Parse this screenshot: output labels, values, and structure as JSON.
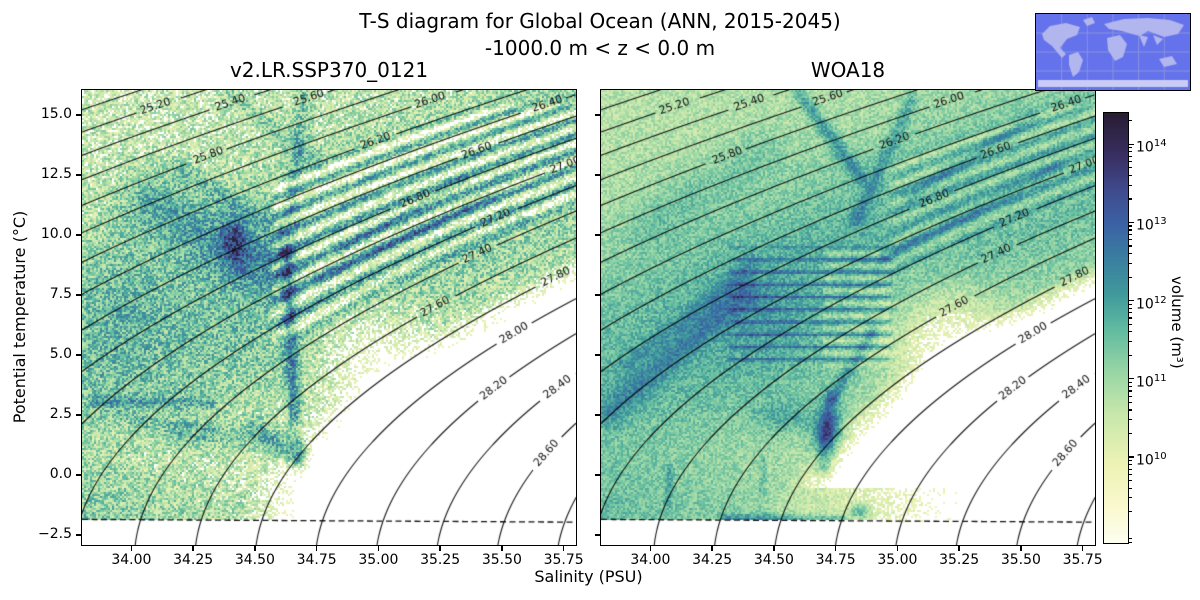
{
  "chart_data": {
    "type": "heatmap",
    "title": "T-S diagram for Global Ocean (ANN, 2015-2045)",
    "subtitle": "-1000.0 m < z < 0.0 m",
    "xlabel": "Salinity (PSU)",
    "ylabel": "Potential temperature (°C)",
    "xlim": [
      33.8,
      35.8
    ],
    "ylim": [
      -2.92,
      16.04
    ],
    "axes": {
      "x_ticks": [
        "34.00",
        "34.25",
        "34.50",
        "34.75",
        "35.00",
        "35.25",
        "35.50",
        "35.75"
      ],
      "y_ticks": [
        "15.0",
        "12.5",
        "10.0",
        "7.5",
        "5.0",
        "2.5",
        "0.0",
        "−2.5"
      ]
    },
    "colorbar": {
      "label": "volume (m³)",
      "scale": "log",
      "tick_base": "10",
      "tick_exponents": [
        14,
        13,
        12,
        11,
        10
      ],
      "log_range": [
        8.9,
        14.4
      ],
      "stops": [
        [
          0.0,
          "#fdfef0"
        ],
        [
          0.08,
          "#faf9d0"
        ],
        [
          0.18,
          "#eef3b5"
        ],
        [
          0.3,
          "#c8e7ab"
        ],
        [
          0.4,
          "#97d5a5"
        ],
        [
          0.5,
          "#5fbaa0"
        ],
        [
          0.58,
          "#40999c"
        ],
        [
          0.66,
          "#3a7fa0"
        ],
        [
          0.74,
          "#3b63a5"
        ],
        [
          0.82,
          "#3f4b8e"
        ],
        [
          0.9,
          "#392f63"
        ],
        [
          0.96,
          "#2e2444"
        ],
        [
          1.0,
          "#281d33"
        ]
      ]
    },
    "contours": {
      "quantity": "potential density sigma-0",
      "min": 24.2,
      "max": 28.8,
      "step": 0.2,
      "labels": [
        {
          "level": 25.2,
          "text": "25.20",
          "T": 15.35
        },
        {
          "level": 25.4,
          "text": "25.40",
          "T": 15.5
        },
        {
          "level": 25.6,
          "text": "25.60",
          "T": 15.7
        },
        {
          "level": 25.8,
          "text": "25.80",
          "T": 13.3
        },
        {
          "level": 26.0,
          "text": "26.00",
          "T": 15.6
        },
        {
          "level": 26.2,
          "text": "26.20",
          "T": 13.9
        },
        {
          "level": 26.4,
          "text": "26.40",
          "T": 15.45
        },
        {
          "level": 26.6,
          "text": "26.60",
          "T": 13.5
        },
        {
          "level": 26.8,
          "text": "26.80",
          "T": 11.5
        },
        {
          "level": 27.0,
          "text": "27.00",
          "T": 12.9
        },
        {
          "level": 27.2,
          "text": "27.20",
          "T": 10.7
        },
        {
          "level": 27.4,
          "text": "27.40",
          "T": 9.2
        },
        {
          "level": 27.6,
          "text": "27.60",
          "T": 7.0
        },
        {
          "level": 27.8,
          "text": "27.80",
          "T": 8.25
        },
        {
          "level": 28.0,
          "text": "28.00",
          "T": 5.9
        },
        {
          "level": 28.2,
          "text": "28.20",
          "T": 3.6
        },
        {
          "level": 28.4,
          "text": "28.40",
          "T": 3.65
        },
        {
          "level": 28.6,
          "text": "28.60",
          "T": 0.9
        }
      ]
    },
    "freezing_line": {
      "style": "dashed",
      "color": "#111111"
    },
    "inset_map": {
      "ocean": "#6472ec",
      "land": "#b2b6ef",
      "ice": "#c9ccf5",
      "grid": "#8a93dd",
      "border": "#000000"
    },
    "panels": [
      {
        "id": "model",
        "title": "v2.LR.SSP370_0121",
        "noise": 0.95,
        "bg": {
          "floor": 10.42,
          "peak_amp": 1.0,
          "peak_sigma": 26.9,
          "peak_width": 0.8,
          "cut_sigma": 27.72,
          "cut_slope": 9.0,
          "dip_amp": 0.5,
          "dip_T": 1.2,
          "dip_Tw": 2.0
        },
        "features": [
          {
            "kind": "blob",
            "c": [
              33.95,
              7.5
            ],
            "sx": 45,
            "sy": 70,
            "amp": 0.35
          },
          {
            "kind": "seg",
            "a": [
              34.08,
              11.4
            ],
            "b": [
              34.52,
              8.8
            ],
            "w": 30,
            "amp": 1.05
          },
          {
            "kind": "blob",
            "c": [
              34.42,
              9.7
            ],
            "sx": 13,
            "sy": 25,
            "amp": 1.5
          },
          {
            "kind": "seg",
            "a": [
              34.18,
              12.8
            ],
            "b": [
              34.6,
              10.2
            ],
            "w": 9,
            "amp": 0.6
          },
          {
            "kind": "seg",
            "a": [
              34.63,
              9.2
            ],
            "b": [
              34.66,
              2.4
            ],
            "w": 7,
            "amp": 1.6
          },
          {
            "kind": "seg",
            "a": [
              34.7,
              15.9
            ],
            "b": [
              34.63,
              9.2
            ],
            "w": 8,
            "amp": 0.8
          },
          {
            "kind": "blob",
            "c": [
              34.68,
              1.0
            ],
            "sx": 9,
            "sy": 16,
            "amp": 1.9
          },
          {
            "kind": "seg",
            "a": [
              33.85,
              3.05
            ],
            "b": [
              34.32,
              3.0
            ],
            "w": 6,
            "amp": 0.95
          },
          {
            "kind": "seg",
            "a": [
              34.2,
              1.7
            ],
            "b": [
              34.6,
              1.4
            ],
            "w": 16,
            "amp": 0.7
          },
          {
            "kind": "seg",
            "a": [
              34.5,
              2.0
            ],
            "b": [
              34.67,
              0.6
            ],
            "w": 9,
            "amp": 0.9
          },
          {
            "kind": "seg",
            "a": [
              33.95,
              2.5
            ],
            "b": [
              34.33,
              1.9
            ],
            "w": 3.5,
            "amp": 0.55
          },
          {
            "kind": "seg",
            "a": [
              34.0,
              2.15
            ],
            "b": [
              34.3,
              1.5
            ],
            "w": 3,
            "amp": 0.45
          },
          {
            "kind": "seg",
            "a": [
              34.75,
              8.0
            ],
            "b": [
              35.45,
              11.6
            ],
            "w": 6,
            "amp": 0.9
          },
          {
            "kind": "seg",
            "a": [
              34.72,
              6.8
            ],
            "b": [
              35.58,
              10.7
            ],
            "w": 5,
            "amp": 0.7
          },
          {
            "kind": "seg",
            "a": [
              34.85,
              9.4
            ],
            "b": [
              35.35,
              12.3
            ],
            "w": 5,
            "amp": 0.8
          },
          {
            "kind": "seg",
            "a": [
              34.4,
              15.9
            ],
            "b": [
              34.75,
              13.0
            ],
            "w": 9,
            "amp": 0.6
          },
          {
            "kind": "blob",
            "c": [
              35.0,
              4.6
            ],
            "sx": 55,
            "sy": 50,
            "amp": -1.4
          },
          {
            "kind": "sigstripes",
            "period": 0.14,
            "amp": 1.15,
            "bias": 0.35,
            "smin": 34.55,
            "smax": 35.85,
            "tmin": 5.5,
            "tmax": 15.6,
            "sigmin": 26.15,
            "sigmax": 27.42
          }
        ]
      },
      {
        "id": "obs",
        "title": "WOA18",
        "noise": 0.5,
        "bg": {
          "floor": 10.75,
          "peak_amp": 0.95,
          "peak_sigma": 26.95,
          "peak_width": 0.85,
          "cut_sigma": 27.75,
          "cut_slope": 9.0,
          "dip_amp": 0.25,
          "dip_T": 1.0,
          "dip_Tw": 2.0,
          "tongue": {
            "base": 10.85,
            "s0": 34.5,
            "slope": 2.0,
            "tmax": -0.55
          }
        },
        "features": [
          {
            "kind": "tstripes",
            "period": 0.52,
            "amp": 1.05,
            "bias": 0.2,
            "smin": 34.3,
            "smax": 35.0,
            "tmin": 4.3,
            "tmax": 9.7
          },
          {
            "kind": "sigstripes",
            "period": 0.14,
            "amp": 0.5,
            "bias": 0.3,
            "smin": 34.95,
            "smax": 35.85,
            "tmin": 8.0,
            "tmax": 15.6,
            "sigmin": 26.3,
            "sigmax": 27.3
          },
          {
            "kind": "seg",
            "a": [
              33.83,
              2.6
            ],
            "b": [
              34.38,
              7.6
            ],
            "w": 14,
            "amp": 0.8
          },
          {
            "kind": "seg",
            "a": [
              33.9,
              4.6
            ],
            "b": [
              34.42,
              8.8
            ],
            "w": 8,
            "amp": 0.5
          },
          {
            "kind": "blob",
            "c": [
              34.45,
              6.6
            ],
            "sx": 45,
            "sy": 55,
            "amp": 0.45
          },
          {
            "kind": "seg",
            "a": [
              34.6,
              15.9
            ],
            "b": [
              34.85,
              12.4
            ],
            "w": 7,
            "amp": 1.1
          },
          {
            "kind": "seg",
            "a": [
              35.06,
              15.6
            ],
            "b": [
              34.83,
              10.6
            ],
            "w": 7,
            "amp": 0.8
          },
          {
            "kind": "seg",
            "a": [
              35.05,
              11.6
            ],
            "b": [
              35.55,
              14.9
            ],
            "w": 6,
            "amp": 0.7
          },
          {
            "kind": "blob",
            "c": [
              34.72,
              1.7
            ],
            "sx": 16,
            "sy": 22,
            "amp": 1.6
          },
          {
            "kind": "blob",
            "c": [
              34.55,
              2.4
            ],
            "sx": 30,
            "sy": 16,
            "amp": 0.7
          },
          {
            "kind": "seg",
            "a": [
              34.7,
              0.3
            ],
            "b": [
              34.73,
              3.2
            ],
            "w": 8,
            "amp": 1.2
          },
          {
            "kind": "seg",
            "a": [
              34.74,
              3.2
            ],
            "b": [
              34.9,
              6.0
            ],
            "w": 6,
            "amp": 0.9
          },
          {
            "kind": "seg",
            "a": [
              34.3,
              -1.85
            ],
            "b": [
              34.78,
              -1.85
            ],
            "w": 5,
            "amp": 1.2
          },
          {
            "kind": "blob",
            "c": [
              34.85,
              -1.55
            ],
            "sx": 10,
            "sy": 8,
            "amp": 1.5
          },
          {
            "kind": "seg",
            "a": [
              34.07,
              -1.2
            ],
            "b": [
              34.08,
              0.3
            ],
            "w": 4,
            "amp": 0.6
          },
          {
            "kind": "seg",
            "a": [
              34.45,
              -0.7
            ],
            "b": [
              34.46,
              0.6
            ],
            "w": 3.5,
            "amp": 0.5
          },
          {
            "kind": "blob",
            "c": [
              35.2,
              5.4
            ],
            "sx": 55,
            "sy": 55,
            "amp": -1.5
          },
          {
            "kind": "seg",
            "a": [
              34.95,
              9.0
            ],
            "b": [
              35.65,
              12.8
            ],
            "w": 6,
            "amp": 0.65
          },
          {
            "kind": "seg",
            "a": [
              34.0,
              10.5
            ],
            "b": [
              34.45,
              13.5
            ],
            "w": 25,
            "amp": 0.4
          }
        ]
      }
    ]
  }
}
